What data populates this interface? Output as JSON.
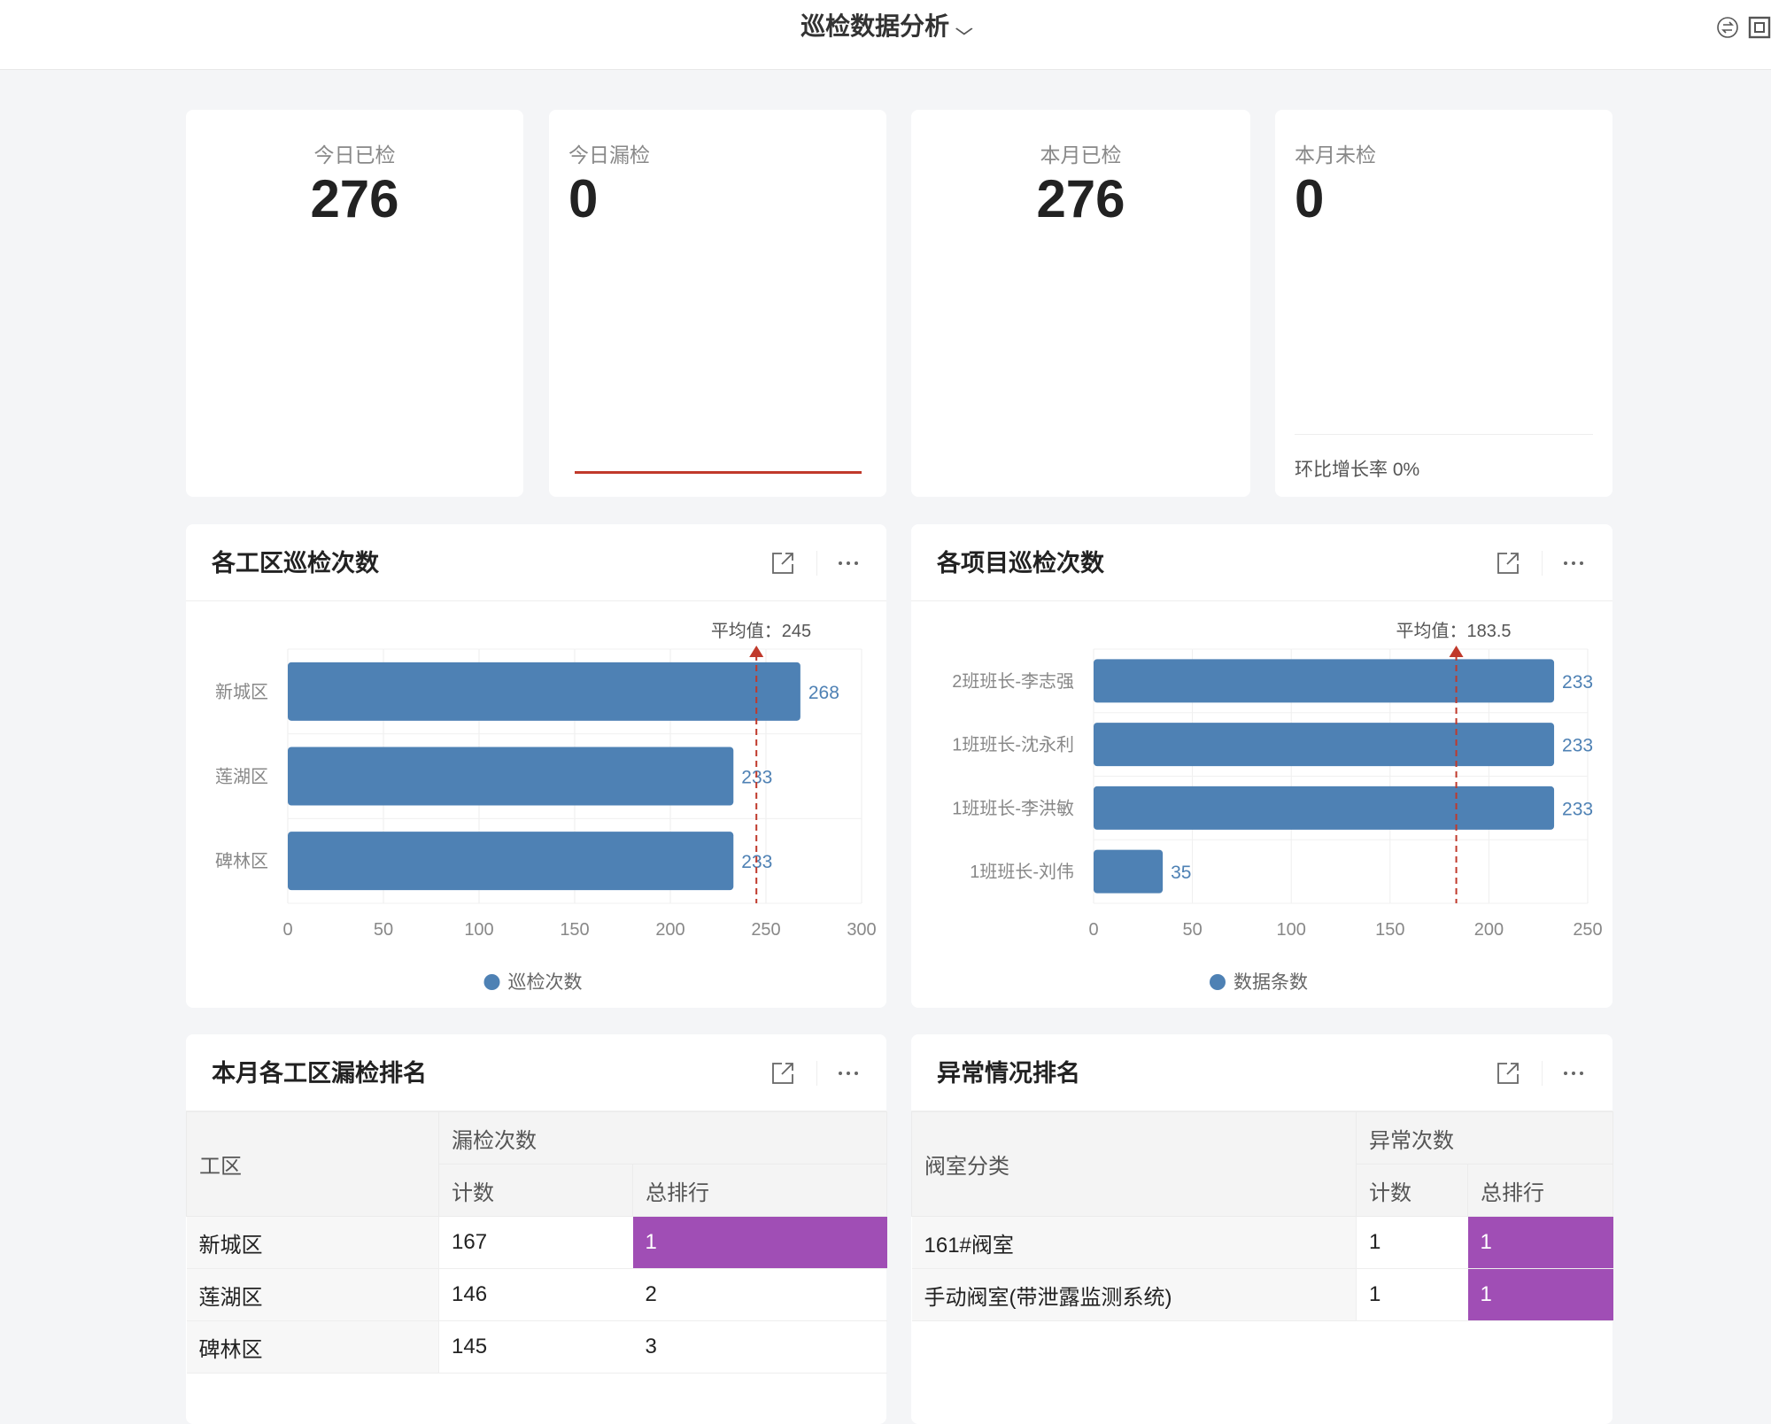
{
  "header": {
    "title": "巡检数据分析",
    "icons": [
      "switch-icon",
      "fullscreen-icon"
    ]
  },
  "kpis": [
    {
      "label": "今日已检",
      "value": "276"
    },
    {
      "label": "今日漏检",
      "value": "0"
    },
    {
      "label": "本月已检",
      "value": "276"
    },
    {
      "label": "本月未检",
      "value": "0",
      "footer": "环比增长率 0%"
    }
  ],
  "colors": {
    "bar": "#4e81b4",
    "avg_line": "#c0392b",
    "rank_highlight": "#a04eb5"
  },
  "charts": [
    {
      "title": "各工区巡检次数",
      "chart_data": {
        "type": "bar",
        "orientation": "horizontal",
        "categories": [
          "新城区",
          "莲湖区",
          "碑林区"
        ],
        "series": [
          {
            "name": "巡检次数",
            "values": [
              268,
              233,
              233
            ]
          }
        ],
        "xlim": [
          0,
          300
        ],
        "ticks": [
          "0",
          "50",
          "100",
          "150",
          "200",
          "250",
          "300"
        ],
        "avg_value": 245,
        "avg_label": "平均值：245",
        "grid": true,
        "legend": "bottom"
      }
    },
    {
      "title": "各项目巡检次数",
      "chart_data": {
        "type": "bar",
        "orientation": "horizontal",
        "categories": [
          "2班班长-李志强",
          "1班班长-沈永利",
          "1班班长-李洪敏",
          "1班班长-刘伟"
        ],
        "series": [
          {
            "name": "数据条数",
            "values": [
              233,
              233,
              233,
              35
            ]
          }
        ],
        "xlim": [
          0,
          250
        ],
        "ticks": [
          "0",
          "50",
          "100",
          "150",
          "200",
          "250"
        ],
        "avg_value": 183.5,
        "avg_label": "平均值：183.5",
        "grid": true,
        "legend": "bottom"
      }
    }
  ],
  "tables": [
    {
      "title": "本月各工区漏检排名",
      "col1": "工区",
      "group": "漏检次数",
      "sub": [
        "计数",
        "总排行"
      ],
      "rows": [
        [
          "新城区",
          "167",
          "1"
        ],
        [
          "莲湖区",
          "146",
          "2"
        ],
        [
          "碑林区",
          "145",
          "3"
        ]
      ]
    },
    {
      "title": "异常情况排名",
      "col1": "阀室分类",
      "group": "异常次数",
      "sub": [
        "计数",
        "总排行"
      ],
      "rows": [
        [
          "161#阀室",
          "1",
          "1"
        ],
        [
          "手动阀室(带泄露监测系统)",
          "1",
          "1"
        ]
      ]
    }
  ]
}
